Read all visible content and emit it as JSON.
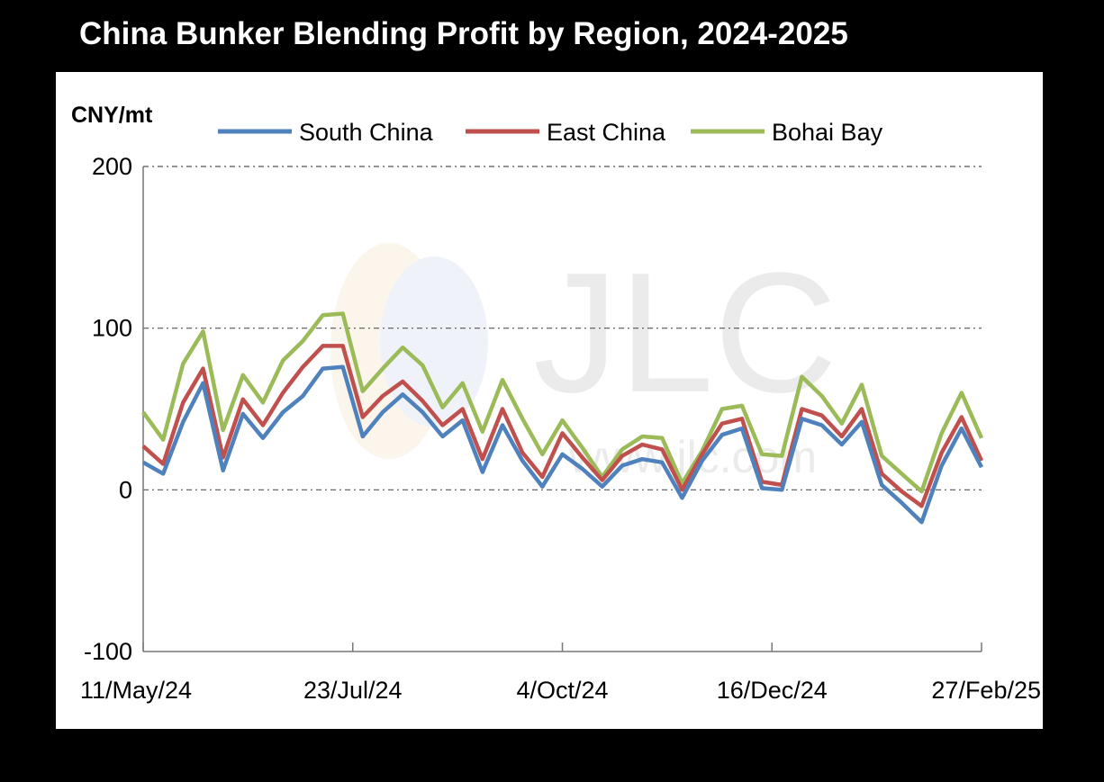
{
  "chart_data": {
    "type": "line",
    "title": "China Bunker Blending Profit by Region, 2024-2025",
    "ylabel": "CNY/mt",
    "xlabel": "",
    "ylim": [
      -100,
      200
    ],
    "yticks": [
      "200",
      "100",
      "0",
      "-100"
    ],
    "xtick_labels": [
      "11/May/24",
      "23/Jul/24",
      "4/Oct/24",
      "16/Dec/24",
      "27/Feb/25"
    ],
    "legend_position": "top",
    "grid": "dash-dot horizontal",
    "watermark": "JLC www.jlc.com",
    "series": [
      {
        "name": "South China",
        "color": "#4f81bd",
        "values": [
          17,
          10,
          42,
          66,
          12,
          47,
          32,
          48,
          58,
          75,
          76,
          33,
          48,
          59,
          48,
          33,
          43,
          11,
          40,
          18,
          2,
          22,
          13,
          2,
          15,
          19,
          17,
          -5,
          18,
          34,
          38,
          1,
          0,
          44,
          40,
          28,
          42,
          3,
          -8,
          -20,
          15,
          38,
          14
        ]
      },
      {
        "name": "East China",
        "color": "#c0504d",
        "values": [
          27,
          16,
          54,
          75,
          20,
          56,
          40,
          60,
          76,
          89,
          89,
          45,
          58,
          67,
          55,
          40,
          50,
          19,
          50,
          23,
          8,
          35,
          20,
          6,
          21,
          28,
          25,
          0,
          22,
          41,
          44,
          5,
          3,
          50,
          46,
          33,
          50,
          10,
          -1,
          -10,
          23,
          45,
          18
        ]
      },
      {
        "name": "Bohai Bay",
        "color": "#9bbb59",
        "values": [
          48,
          31,
          78,
          98,
          37,
          71,
          54,
          80,
          92,
          108,
          109,
          61,
          75,
          88,
          77,
          51,
          66,
          36,
          68,
          44,
          22,
          43,
          26,
          8,
          25,
          33,
          32,
          4,
          24,
          50,
          52,
          22,
          21,
          70,
          58,
          41,
          65,
          21,
          10,
          -1,
          35,
          60,
          32
        ]
      }
    ]
  }
}
